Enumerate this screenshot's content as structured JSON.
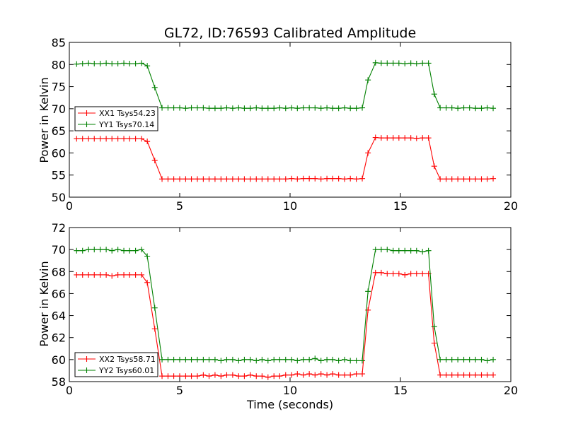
{
  "chart_data": [
    {
      "type": "line",
      "title": "GL72, ID:76593 Calibrated Amplitude",
      "xlabel": "",
      "ylabel": "Power in Kelvin",
      "xlim": [
        0,
        20
      ],
      "ylim": [
        50,
        85
      ],
      "xticks": [
        0,
        5,
        10,
        15,
        20
      ],
      "yticks": [
        50,
        55,
        60,
        65,
        70,
        75,
        80,
        85
      ],
      "grid": false,
      "legend_position": "center-left",
      "x": [
        0.33,
        0.6,
        0.87,
        1.13,
        1.4,
        1.67,
        1.93,
        2.2,
        2.47,
        2.73,
        3.0,
        3.27,
        3.53,
        3.87,
        4.2,
        4.47,
        4.73,
        5.0,
        5.27,
        5.53,
        5.8,
        6.07,
        6.33,
        6.6,
        6.87,
        7.13,
        7.4,
        7.67,
        7.93,
        8.2,
        8.47,
        8.73,
        9.0,
        9.27,
        9.53,
        9.8,
        10.07,
        10.33,
        10.6,
        10.87,
        11.13,
        11.4,
        11.67,
        11.93,
        12.2,
        12.47,
        12.73,
        13.0,
        13.27,
        13.53,
        13.87,
        14.13,
        14.4,
        14.67,
        14.93,
        15.2,
        15.47,
        15.73,
        16.0,
        16.27,
        16.53,
        16.8,
        17.07,
        17.33,
        17.6,
        17.87,
        18.13,
        18.4,
        18.67,
        18.93,
        19.2
      ],
      "series": [
        {
          "name": "XX1 Tsys54.23",
          "color": "#ff0000",
          "values": [
            63.2,
            63.2,
            63.2,
            63.2,
            63.2,
            63.2,
            63.2,
            63.2,
            63.2,
            63.2,
            63.2,
            63.2,
            62.6,
            58.3,
            54.1,
            54.1,
            54.1,
            54.1,
            54.1,
            54.1,
            54.1,
            54.1,
            54.1,
            54.1,
            54.1,
            54.1,
            54.1,
            54.1,
            54.1,
            54.1,
            54.1,
            54.1,
            54.1,
            54.1,
            54.1,
            54.1,
            54.2,
            54.1,
            54.2,
            54.2,
            54.2,
            54.1,
            54.2,
            54.2,
            54.2,
            54.1,
            54.2,
            54.1,
            54.2,
            60.0,
            63.5,
            63.4,
            63.4,
            63.4,
            63.4,
            63.4,
            63.4,
            63.3,
            63.4,
            63.4,
            57.0,
            54.1,
            54.1,
            54.1,
            54.1,
            54.1,
            54.1,
            54.1,
            54.1,
            54.1,
            54.2
          ]
        },
        {
          "name": "YY1 Tsys70.14",
          "color": "#008000",
          "values": [
            80.1,
            80.2,
            80.3,
            80.2,
            80.2,
            80.3,
            80.2,
            80.2,
            80.3,
            80.2,
            80.2,
            80.3,
            79.7,
            74.8,
            70.2,
            70.2,
            70.2,
            70.2,
            70.1,
            70.2,
            70.2,
            70.2,
            70.1,
            70.1,
            70.1,
            70.2,
            70.1,
            70.2,
            70.1,
            70.1,
            70.2,
            70.1,
            70.1,
            70.1,
            70.2,
            70.1,
            70.2,
            70.1,
            70.2,
            70.2,
            70.2,
            70.1,
            70.2,
            70.1,
            70.1,
            70.2,
            70.1,
            70.1,
            70.2,
            76.5,
            80.4,
            80.3,
            80.3,
            80.3,
            80.3,
            80.2,
            80.3,
            80.2,
            80.3,
            80.3,
            73.3,
            70.2,
            70.2,
            70.2,
            70.1,
            70.2,
            70.2,
            70.1,
            70.1,
            70.2,
            70.1
          ]
        }
      ]
    },
    {
      "type": "line",
      "title": "",
      "xlabel": "Time (seconds)",
      "ylabel": "Power in Kelvin",
      "xlim": [
        0,
        20
      ],
      "ylim": [
        58,
        72
      ],
      "xticks": [
        0,
        5,
        10,
        15,
        20
      ],
      "yticks": [
        58,
        60,
        62,
        64,
        66,
        68,
        70,
        72
      ],
      "grid": false,
      "legend_position": "bottom-left",
      "x": [
        0.33,
        0.6,
        0.87,
        1.13,
        1.4,
        1.67,
        1.93,
        2.2,
        2.47,
        2.73,
        3.0,
        3.27,
        3.53,
        3.87,
        4.2,
        4.47,
        4.73,
        5.0,
        5.27,
        5.53,
        5.8,
        6.07,
        6.33,
        6.6,
        6.87,
        7.13,
        7.4,
        7.67,
        7.93,
        8.2,
        8.47,
        8.73,
        9.0,
        9.27,
        9.53,
        9.8,
        10.07,
        10.33,
        10.6,
        10.87,
        11.13,
        11.4,
        11.67,
        11.93,
        12.2,
        12.47,
        12.73,
        13.0,
        13.27,
        13.53,
        13.87,
        14.13,
        14.4,
        14.67,
        14.93,
        15.2,
        15.47,
        15.73,
        16.0,
        16.27,
        16.53,
        16.8,
        17.07,
        17.33,
        17.6,
        17.87,
        18.13,
        18.4,
        18.67,
        18.93,
        19.2
      ],
      "series": [
        {
          "name": "XX2 Tsys58.71",
          "color": "#ff0000",
          "values": [
            67.7,
            67.7,
            67.7,
            67.7,
            67.7,
            67.7,
            67.6,
            67.7,
            67.7,
            67.7,
            67.7,
            67.7,
            67.0,
            62.8,
            58.5,
            58.5,
            58.5,
            58.5,
            58.5,
            58.5,
            58.5,
            58.6,
            58.5,
            58.6,
            58.5,
            58.6,
            58.6,
            58.5,
            58.5,
            58.6,
            58.5,
            58.5,
            58.4,
            58.5,
            58.5,
            58.6,
            58.6,
            58.7,
            58.6,
            58.7,
            58.6,
            58.7,
            58.6,
            58.7,
            58.6,
            58.6,
            58.6,
            58.7,
            58.7,
            64.5,
            67.9,
            67.9,
            67.8,
            67.8,
            67.8,
            67.7,
            67.8,
            67.8,
            67.8,
            67.8,
            61.5,
            58.6,
            58.6,
            58.6,
            58.6,
            58.6,
            58.6,
            58.6,
            58.6,
            58.6,
            58.6
          ]
        },
        {
          "name": "YY2 Tsys60.01",
          "color": "#008000",
          "values": [
            69.9,
            69.9,
            70.0,
            70.0,
            70.0,
            70.0,
            69.9,
            70.0,
            69.9,
            69.9,
            69.9,
            70.0,
            69.4,
            64.7,
            60.0,
            60.0,
            60.0,
            60.0,
            60.0,
            60.0,
            60.0,
            60.0,
            60.0,
            60.0,
            59.9,
            60.0,
            60.0,
            59.9,
            60.0,
            60.0,
            59.9,
            60.0,
            59.9,
            60.0,
            60.0,
            60.0,
            60.0,
            59.9,
            60.0,
            60.0,
            60.1,
            59.9,
            60.0,
            60.0,
            59.9,
            60.0,
            59.9,
            59.9,
            59.9,
            66.2,
            70.0,
            70.0,
            70.0,
            69.9,
            69.9,
            69.9,
            69.9,
            69.9,
            69.8,
            69.9,
            63.0,
            60.0,
            60.0,
            60.0,
            60.0,
            60.0,
            60.0,
            60.0,
            60.0,
            59.9,
            60.0
          ]
        }
      ]
    }
  ]
}
